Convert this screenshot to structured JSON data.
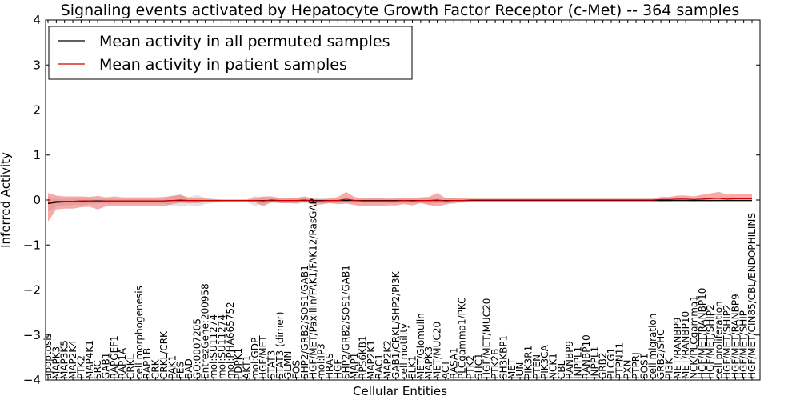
{
  "chart_data": {
    "type": "line",
    "title": "Signaling events activated by Hepatocyte Growth Factor Receptor (c-Met) -- 364 samples",
    "xlabel": "Cellular Entities",
    "ylabel": "Inferred Activity",
    "ylim": [
      -4,
      4
    ],
    "yticks": [
      4,
      3,
      2,
      1,
      0,
      -1,
      -2,
      -3,
      -4
    ],
    "ytick_labels": [
      "4",
      "3",
      "2",
      "1",
      "0",
      "−1",
      "−2",
      "−3",
      "−4"
    ],
    "legend_position": "upper-left",
    "categories": [
      "apoptosis",
      "MAPK3",
      "MAP3K5",
      "MAP2K4",
      "PTK2",
      "MAP4K1",
      "SRC",
      "GAB1",
      "RAPGEF1",
      "RAP1A",
      "CRKL",
      "cell morphogenesis",
      "RAP1B",
      "CRK",
      "CRKL/CRK",
      "PAK1",
      "FES",
      "BAD",
      "GO:0007205",
      "EntrezGene:200958",
      "mol:SU11274",
      "mol:SU11274",
      "mol:PHA665752",
      "PDPK1",
      "AKT1",
      "mol:GDP",
      "HGF/MET",
      "STAT3",
      "STAT3 (dimer)",
      "GLMN",
      "FOS",
      "SHP2/GRB2/SOS1/GAB1",
      "HGF/MET/Paxillin/FAK1/FAK12/RasGAP",
      "mol:IP3",
      "HRAS",
      "HGF",
      "SHP2/GRB2/SOS1/GAB1",
      "MAP1",
      "RPS6KB1",
      "MAP2K1",
      "RAC1",
      "MAP2K2",
      "GAB1/CRKL/SHP2/PI3K",
      "cell motility",
      "ELK1",
      "MET/Glomulin",
      "MAPK3",
      "MET/MUC20",
      "ACT",
      "RASA1",
      "PLCgamma1/PKC",
      "PTK2",
      "SHC1",
      "HGF/MET/MUC20",
      "PTK2B",
      "SH3KBP1",
      "MET",
      "JUN",
      "PIK3R1",
      "PTEN",
      "PIK3CA",
      "NCK1",
      "CBL",
      "RANBP9",
      "INPPL1",
      "RANBP10",
      "INPPL1",
      "GRB2",
      "PLCG1",
      "PTPN11",
      "PXN",
      "PTPRJ",
      "SOS1",
      "cell migration",
      "GRB2/SHC",
      "PI3K",
      "MET/RANBP9",
      "MET/RANBP10",
      "NCK/PLCgamma1",
      "HGF/MET/RANBP10",
      "HGF/MET/SHIP2",
      "cell proliferation",
      "HGF/MET/SHIP2",
      "HGF/MET/RANBP9",
      "HGF/MET/SHIP",
      "HGF/MET/CIN85/CBL/ENDOPHILINS"
    ],
    "series": [
      {
        "name": "Mean activity in all permuted samples",
        "color": "#000000",
        "values": [
          -0.08,
          -0.05,
          -0.04,
          -0.03,
          -0.03,
          -0.02,
          -0.02,
          -0.02,
          -0.02,
          -0.02,
          -0.02,
          -0.02,
          -0.02,
          -0.02,
          -0.02,
          -0.01,
          -0.01,
          -0.01,
          -0.01,
          -0.01,
          -0.01,
          -0.01,
          -0.01,
          -0.01,
          -0.01,
          -0.01,
          -0.01,
          -0.01,
          -0.01,
          -0.01,
          -0.01,
          -0.01,
          -0.01,
          -0.01,
          -0.01,
          -0.01,
          -0.01,
          -0.01,
          -0.01,
          -0.01,
          -0.01,
          -0.01,
          -0.01,
          -0.01,
          -0.01,
          -0.01,
          -0.01,
          -0.01,
          -0.01,
          -0.01,
          -0.01,
          -0.01,
          -0.01,
          -0.01,
          -0.01,
          -0.01,
          -0.01,
          -0.01,
          -0.01,
          -0.01,
          -0.01,
          -0.01,
          -0.01,
          -0.01,
          -0.01,
          -0.01,
          -0.01,
          -0.01,
          -0.01,
          -0.01,
          -0.01,
          -0.01,
          -0.01,
          -0.01,
          -0.01,
          -0.01,
          -0.01,
          -0.01,
          -0.01,
          -0.01,
          -0.01,
          -0.01,
          -0.01,
          -0.01,
          -0.01,
          -0.01
        ],
        "band_low": [
          -0.18,
          -0.1,
          -0.08,
          -0.08,
          -0.08,
          -0.07,
          -0.06,
          -0.06,
          -0.06,
          -0.06,
          -0.06,
          -0.06,
          -0.06,
          -0.06,
          -0.06,
          -0.12,
          -0.14,
          -0.1,
          -0.14,
          -0.08,
          -0.05,
          -0.04,
          -0.04,
          -0.04,
          -0.04,
          -0.12,
          -0.08,
          -0.06,
          -0.06,
          -0.06,
          -0.08,
          -0.06,
          -0.06,
          -0.06,
          -0.06,
          -0.05,
          -0.05,
          -0.05,
          -0.05,
          -0.06,
          -0.06,
          -0.06,
          -0.06,
          -0.06,
          -0.06,
          -0.06,
          -0.08,
          -0.06,
          -0.06,
          -0.08,
          -0.05,
          -0.04,
          -0.04,
          -0.04,
          -0.04,
          -0.04,
          -0.04,
          -0.04,
          -0.04,
          -0.04,
          -0.04,
          -0.04,
          -0.04,
          -0.04,
          -0.04,
          -0.04,
          -0.04,
          -0.04,
          -0.04,
          -0.04,
          -0.04,
          -0.04,
          -0.04,
          -0.04,
          -0.04,
          -0.04,
          -0.04,
          -0.04,
          -0.04,
          -0.04,
          -0.04,
          -0.04,
          -0.04,
          -0.04,
          -0.04,
          -0.04
        ],
        "band_high": [
          0.16,
          0.08,
          0.06,
          0.06,
          0.06,
          0.05,
          0.04,
          0.04,
          0.04,
          0.04,
          0.04,
          0.04,
          0.04,
          0.04,
          0.04,
          0.1,
          0.12,
          0.08,
          0.12,
          0.06,
          0.03,
          0.02,
          0.02,
          0.02,
          0.02,
          0.1,
          0.06,
          0.04,
          0.04,
          0.04,
          0.06,
          0.04,
          0.04,
          0.04,
          0.04,
          0.03,
          0.03,
          0.03,
          0.03,
          0.04,
          0.04,
          0.04,
          0.04,
          0.04,
          0.04,
          0.04,
          0.06,
          0.04,
          0.04,
          0.06,
          0.03,
          0.02,
          0.02,
          0.02,
          0.02,
          0.02,
          0.02,
          0.02,
          0.02,
          0.02,
          0.02,
          0.02,
          0.02,
          0.02,
          0.02,
          0.02,
          0.02,
          0.02,
          0.02,
          0.02,
          0.02,
          0.02,
          0.02,
          0.02,
          0.02,
          0.02,
          0.02,
          0.02,
          0.02,
          0.02,
          0.02,
          0.02,
          0.02,
          0.02,
          0.02,
          0.02
        ]
      },
      {
        "name": "Mean activity in patient samples",
        "color": "#cc0000",
        "values": [
          -0.06,
          -0.03,
          -0.03,
          -0.03,
          -0.02,
          -0.02,
          -0.03,
          -0.02,
          -0.02,
          -0.02,
          -0.02,
          -0.02,
          -0.02,
          -0.02,
          -0.02,
          -0.01,
          0.0,
          -0.01,
          -0.01,
          -0.01,
          -0.01,
          -0.01,
          -0.01,
          -0.01,
          -0.01,
          -0.01,
          -0.02,
          0.0,
          -0.01,
          -0.01,
          -0.01,
          0.0,
          -0.02,
          -0.02,
          -0.01,
          -0.01,
          0.02,
          -0.01,
          -0.02,
          -0.02,
          -0.02,
          -0.02,
          -0.02,
          -0.01,
          -0.02,
          -0.01,
          -0.01,
          0.0,
          -0.02,
          -0.01,
          -0.01,
          0.0,
          0.0,
          0.0,
          0.0,
          0.0,
          0.0,
          0.0,
          0.0,
          0.0,
          0.0,
          0.0,
          0.0,
          0.0,
          0.0,
          0.0,
          0.0,
          0.0,
          0.0,
          0.0,
          0.0,
          0.0,
          0.0,
          0.0,
          0.01,
          0.01,
          0.02,
          0.02,
          0.01,
          0.02,
          0.03,
          0.04,
          0.02,
          0.03,
          0.03,
          0.03
        ],
        "band_low": [
          -0.42,
          -0.18,
          -0.16,
          -0.16,
          -0.14,
          -0.13,
          -0.18,
          -0.12,
          -0.12,
          -0.12,
          -0.12,
          -0.12,
          -0.12,
          -0.12,
          -0.12,
          -0.08,
          -0.06,
          -0.06,
          -0.06,
          -0.04,
          -0.03,
          -0.02,
          -0.02,
          -0.02,
          -0.02,
          -0.04,
          -0.12,
          -0.04,
          -0.06,
          -0.06,
          -0.06,
          -0.04,
          -0.08,
          -0.08,
          -0.06,
          -0.08,
          -0.1,
          -0.1,
          -0.12,
          -0.12,
          -0.12,
          -0.1,
          -0.1,
          -0.08,
          -0.1,
          -0.06,
          -0.1,
          -0.14,
          -0.08,
          -0.05,
          -0.04,
          -0.02,
          -0.02,
          -0.02,
          -0.02,
          -0.02,
          -0.02,
          -0.02,
          -0.02,
          -0.02,
          -0.02,
          -0.02,
          -0.02,
          -0.02,
          -0.02,
          -0.02,
          -0.02,
          -0.02,
          -0.02,
          -0.02,
          -0.02,
          -0.02,
          -0.02,
          -0.02,
          -0.04,
          -0.04,
          -0.04,
          -0.04,
          -0.04,
          -0.04,
          -0.06,
          -0.06,
          -0.04,
          -0.05,
          -0.05,
          -0.05
        ],
        "band_high": [
          0.22,
          0.13,
          0.11,
          0.11,
          0.1,
          0.09,
          0.12,
          0.08,
          0.1,
          0.08,
          0.08,
          0.08,
          0.08,
          0.08,
          0.09,
          0.1,
          0.12,
          0.05,
          0.05,
          0.04,
          0.03,
          0.02,
          0.02,
          0.02,
          0.02,
          0.05,
          0.1,
          0.08,
          0.06,
          0.05,
          0.06,
          0.08,
          0.05,
          0.04,
          0.04,
          0.08,
          0.16,
          0.08,
          0.06,
          0.06,
          0.06,
          0.05,
          0.05,
          0.06,
          0.06,
          0.07,
          0.08,
          0.16,
          0.06,
          0.06,
          0.05,
          0.03,
          0.03,
          0.03,
          0.03,
          0.03,
          0.03,
          0.03,
          0.03,
          0.03,
          0.03,
          0.03,
          0.03,
          0.03,
          0.03,
          0.03,
          0.03,
          0.03,
          0.03,
          0.03,
          0.03,
          0.03,
          0.03,
          0.03,
          0.06,
          0.06,
          0.08,
          0.08,
          0.07,
          0.1,
          0.12,
          0.14,
          0.1,
          0.11,
          0.11,
          0.1
        ]
      }
    ]
  },
  "colors": {
    "permuted_band": "#c8c8c8",
    "patient_band": "#ee6666"
  }
}
